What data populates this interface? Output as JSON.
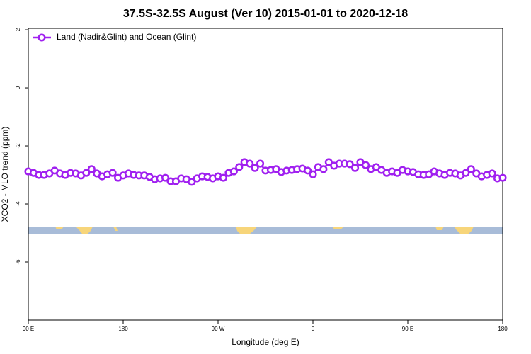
{
  "chart_data": {
    "type": "line",
    "title": "37.5S-32.5S August (Ver 10)   2015-01-01 to 2020-12-18",
    "xlabel": "Longitude (deg E)",
    "ylabel": "XCO2 - MLO trend (ppm)",
    "xlim": [
      90,
      540
    ],
    "ylim": [
      -8,
      2.05
    ],
    "xticks": [
      {
        "value": 90,
        "label": "90 E"
      },
      {
        "value": 180,
        "label": "180"
      },
      {
        "value": 270,
        "label": "90 W"
      },
      {
        "value": 360,
        "label": "0"
      },
      {
        "value": 450,
        "label": "90 E"
      },
      {
        "value": 540,
        "label": "180"
      }
    ],
    "yticks": [
      -6,
      -4,
      -2,
      0,
      2
    ],
    "legend": "top-left",
    "x": [
      90,
      95,
      100,
      105,
      110,
      115,
      120,
      125,
      130,
      135,
      140,
      145,
      150,
      155,
      160,
      165,
      170,
      175,
      180,
      185,
      190,
      195,
      200,
      205,
      210,
      215,
      220,
      225,
      230,
      235,
      240,
      245,
      250,
      255,
      260,
      265,
      270,
      275,
      280,
      285,
      290,
      295,
      300,
      305,
      310,
      315,
      320,
      325,
      330,
      335,
      340,
      345,
      350,
      355,
      360,
      365,
      370,
      375,
      380,
      385,
      390,
      395,
      400,
      405,
      410,
      415,
      420,
      425,
      430,
      435,
      440,
      445,
      450,
      455,
      460,
      465,
      470,
      475,
      480,
      485,
      490,
      495,
      500,
      505,
      510,
      515,
      520,
      525,
      530,
      535,
      540
    ],
    "series": [
      {
        "name": "Land (Nadir&Glint) and Ocean (Glint)",
        "color": "#a020f0",
        "values": [
          -2.88,
          -2.93,
          -3.0,
          -3.0,
          -2.95,
          -2.85,
          -2.95,
          -3.0,
          -2.93,
          -2.95,
          -3.02,
          -2.93,
          -2.8,
          -2.95,
          -3.05,
          -2.98,
          -2.93,
          -3.1,
          -3.02,
          -2.95,
          -3.0,
          -3.02,
          -3.02,
          -3.07,
          -3.15,
          -3.12,
          -3.1,
          -3.22,
          -3.22,
          -3.12,
          -3.15,
          -3.24,
          -3.12,
          -3.05,
          -3.07,
          -3.12,
          -3.05,
          -3.1,
          -2.93,
          -2.88,
          -2.73,
          -2.56,
          -2.61,
          -2.76,
          -2.61,
          -2.85,
          -2.83,
          -2.8,
          -2.9,
          -2.85,
          -2.83,
          -2.8,
          -2.78,
          -2.85,
          -2.98,
          -2.73,
          -2.8,
          -2.56,
          -2.68,
          -2.61,
          -2.61,
          -2.63,
          -2.76,
          -2.56,
          -2.66,
          -2.8,
          -2.73,
          -2.83,
          -2.93,
          -2.88,
          -2.93,
          -2.83,
          -2.88,
          -2.9,
          -2.98,
          -3.0,
          -2.98,
          -2.88,
          -2.95,
          -3.0,
          -2.93,
          -2.95,
          -3.02,
          -2.93,
          -2.8,
          -2.95,
          -3.05,
          -3.0,
          -2.95,
          -3.12,
          -3.1
        ]
      }
    ]
  }
}
